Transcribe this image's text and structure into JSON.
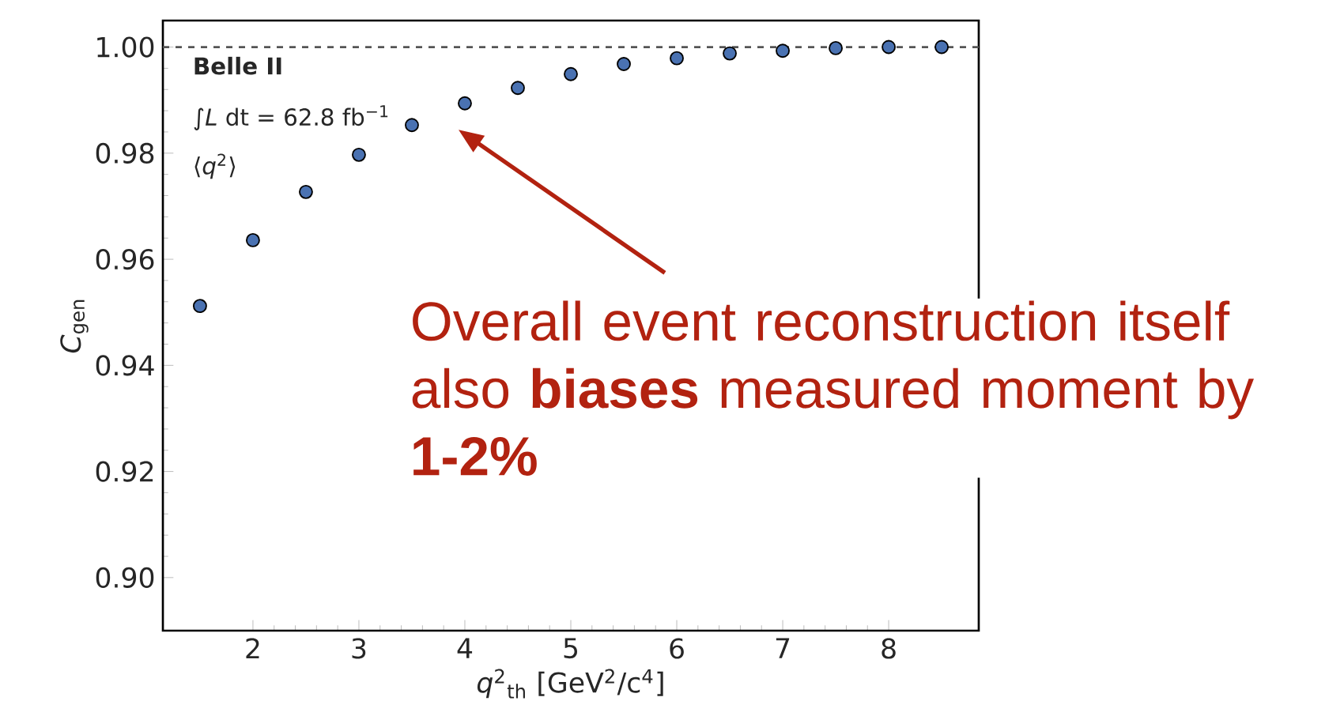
{
  "chart_data": {
    "type": "scatter",
    "xlabel": "*q*$^{2}$$_{th}$ [GeV$^{2}$/c$^{4}$]",
    "ylabel": "*C*$_{gen}$",
    "x": [
      1.5,
      2,
      2.5,
      3,
      3.5,
      4,
      4.5,
      5,
      5.5,
      6,
      6.5,
      7,
      7.5,
      8,
      8.5
    ],
    "values": [
      0.9512,
      0.9636,
      0.9727,
      0.9797,
      0.9853,
      0.9894,
      0.9923,
      0.9949,
      0.9968,
      0.9979,
      0.9988,
      0.9993,
      0.9998,
      1.0,
      1.0
    ],
    "color": "#4a72b2",
    "marker": "circle",
    "xlim": [
      1.15,
      8.85
    ],
    "ylim": [
      0.89,
      1.005
    ],
    "xticks": [
      2,
      3,
      4,
      5,
      6,
      7,
      8
    ],
    "yticks": [
      {
        "value": 0.9,
        "label": "0.90"
      },
      {
        "value": 0.92,
        "label": "0.92"
      },
      {
        "value": 0.94,
        "label": "0.94"
      },
      {
        "value": 0.96,
        "label": "0.96"
      },
      {
        "value": 0.98,
        "label": "0.98"
      },
      {
        "value": 1.0,
        "label": "1.00"
      }
    ],
    "ref_lines": [
      {
        "axis": "y",
        "value": 1.0,
        "color": "#555555",
        "line_style": "dashed"
      }
    ],
    "annotations": [
      "Belle II",
      "∫*L* dt = 62.8 fb$^{−1}$",
      "⟨*q*$^{2}$⟩",
      "Overall event reconstruction itself also **biases** measured moment by **1-2%**"
    ]
  }
}
